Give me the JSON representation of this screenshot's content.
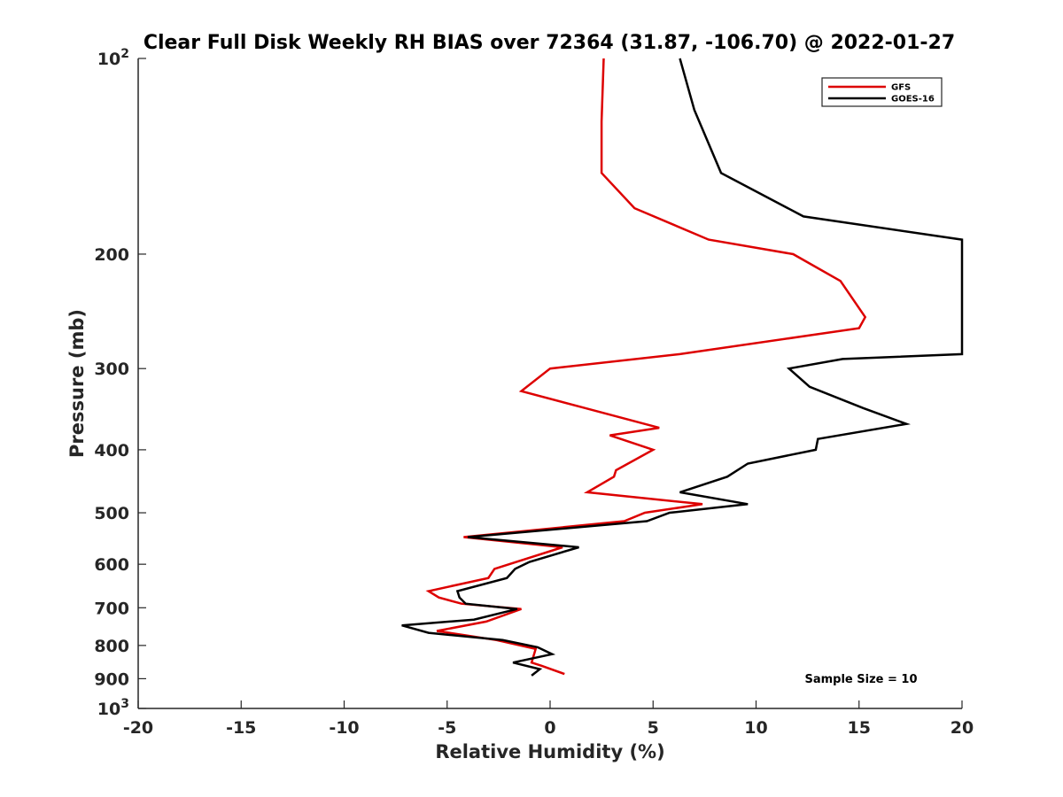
{
  "chart_data": {
    "type": "line",
    "title": "Clear Full Disk Weekly RH BIAS over 72364 (31.87, -106.70) @ 2022-01-27",
    "xlabel": "Relative Humidity (%)",
    "ylabel": "Pressure (mb)",
    "xlim": [
      -20,
      20
    ],
    "ylim": [
      100,
      1000
    ],
    "y_scale": "log",
    "y_reversed": true,
    "grid": false,
    "x_ticks": [
      "-20",
      "-15",
      "-10",
      "-5",
      "0",
      "5",
      "10",
      "15",
      "20"
    ],
    "y_ticks": [
      {
        "value": 100,
        "base": "10",
        "exp": "2"
      },
      {
        "value": 200,
        "base": "200",
        "exp": ""
      },
      {
        "value": 300,
        "base": "300",
        "exp": ""
      },
      {
        "value": 400,
        "base": "400",
        "exp": ""
      },
      {
        "value": 500,
        "base": "500",
        "exp": ""
      },
      {
        "value": 600,
        "base": "600",
        "exp": ""
      },
      {
        "value": 700,
        "base": "700",
        "exp": ""
      },
      {
        "value": 800,
        "base": "800",
        "exp": ""
      },
      {
        "value": 900,
        "base": "900",
        "exp": ""
      },
      {
        "value": 1000,
        "base": "10",
        "exp": "3"
      }
    ],
    "legend": {
      "placement": "top-right"
    },
    "annotation": "Sample Size = 10",
    "series": [
      {
        "name": "GFS",
        "color": "#dd0000",
        "points": [
          [
            2.6,
            100
          ],
          [
            2.5,
            125
          ],
          [
            2.5,
            150
          ],
          [
            4.1,
            170
          ],
          [
            7.7,
            190
          ],
          [
            11.8,
            200
          ],
          [
            14.1,
            220
          ],
          [
            15.3,
            250
          ],
          [
            15.0,
            260
          ],
          [
            6.3,
            285
          ],
          [
            0.0,
            300
          ],
          [
            -1.4,
            325
          ],
          [
            1.7,
            345
          ],
          [
            5.3,
            370
          ],
          [
            2.9,
            380
          ],
          [
            5.0,
            400
          ],
          [
            3.2,
            430
          ],
          [
            3.1,
            440
          ],
          [
            1.8,
            465
          ],
          [
            7.4,
            485
          ],
          [
            4.6,
            500
          ],
          [
            3.6,
            515
          ],
          [
            -4.2,
            545
          ],
          [
            0.6,
            565
          ],
          [
            -2.7,
            610
          ],
          [
            -3.0,
            630
          ],
          [
            -5.9,
            660
          ],
          [
            -5.4,
            675
          ],
          [
            -4.3,
            690
          ],
          [
            -1.4,
            703
          ],
          [
            -3.1,
            735
          ],
          [
            -5.5,
            760
          ],
          [
            -4.3,
            770
          ],
          [
            -2.6,
            785
          ],
          [
            -0.7,
            810
          ],
          [
            -0.9,
            850
          ],
          [
            -0.4,
            860
          ],
          [
            0.7,
            885
          ]
        ]
      },
      {
        "name": "GOES-16",
        "color": "#000000",
        "points": [
          [
            6.3,
            100
          ],
          [
            7.0,
            120
          ],
          [
            8.3,
            150
          ],
          [
            12.3,
            175
          ],
          [
            20.0,
            190
          ],
          [
            20.0,
            285
          ],
          [
            14.2,
            290
          ],
          [
            11.6,
            300
          ],
          [
            12.6,
            320
          ],
          [
            15.2,
            345
          ],
          [
            17.3,
            365
          ],
          [
            13.0,
            385
          ],
          [
            12.9,
            400
          ],
          [
            9.6,
            420
          ],
          [
            8.6,
            440
          ],
          [
            6.3,
            465
          ],
          [
            9.6,
            485
          ],
          [
            5.8,
            500
          ],
          [
            4.7,
            515
          ],
          [
            -4.0,
            545
          ],
          [
            1.4,
            565
          ],
          [
            -1.0,
            595
          ],
          [
            -1.7,
            610
          ],
          [
            -2.1,
            630
          ],
          [
            -4.5,
            660
          ],
          [
            -4.4,
            675
          ],
          [
            -4.1,
            690
          ],
          [
            -1.6,
            703
          ],
          [
            -3.7,
            730
          ],
          [
            -7.2,
            745
          ],
          [
            -5.9,
            765
          ],
          [
            -2.3,
            785
          ],
          [
            -0.6,
            805
          ],
          [
            0.1,
            825
          ],
          [
            -1.8,
            850
          ],
          [
            -0.5,
            870
          ],
          [
            -0.9,
            890
          ]
        ]
      }
    ]
  }
}
